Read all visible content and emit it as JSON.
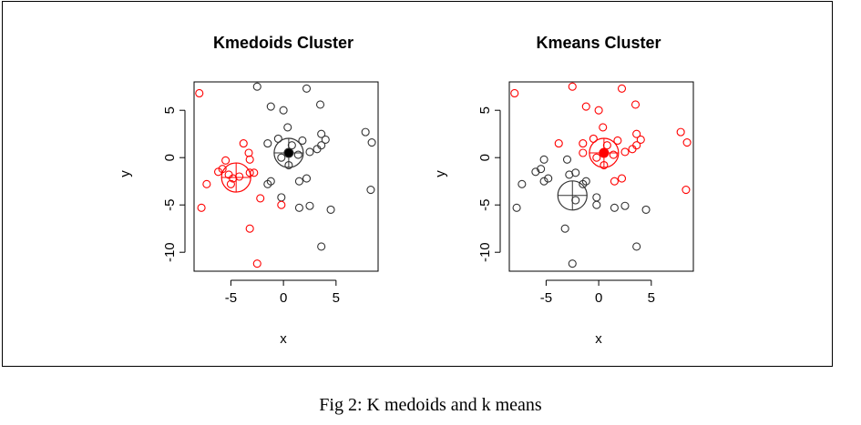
{
  "caption": "Fig 2: K medoids and k means",
  "colors": {
    "cluster_black": "#333333",
    "cluster_red": "#ff0000",
    "axis": "#000000"
  },
  "chart_data": [
    {
      "type": "scatter",
      "title": "Kmedoids Cluster",
      "xlabel": "x",
      "ylabel": "y",
      "xlim": [
        -8.5,
        9
      ],
      "ylim": [
        -12,
        8
      ],
      "xticks": [
        -5,
        0,
        5
      ],
      "yticks": [
        5,
        0,
        -5,
        -10
      ],
      "grid": false,
      "legend": "none",
      "series": [
        {
          "color": "#333333",
          "points": [
            [
              -2.5,
              7.5
            ],
            [
              2.2,
              7.3
            ],
            [
              -1.2,
              5.4
            ],
            [
              0.0,
              5.0
            ],
            [
              3.5,
              5.6
            ],
            [
              0.4,
              3.2
            ],
            [
              -0.5,
              2.0
            ],
            [
              -1.5,
              1.5
            ],
            [
              0.8,
              1.3
            ],
            [
              1.8,
              1.8
            ],
            [
              2.5,
              0.6
            ],
            [
              3.2,
              0.9
            ],
            [
              3.6,
              1.3
            ],
            [
              4.0,
              1.9
            ],
            [
              3.6,
              2.5
            ],
            [
              1.4,
              0.3
            ],
            [
              -0.2,
              0.0
            ],
            [
              0.5,
              -0.8
            ],
            [
              1.5,
              -2.5
            ],
            [
              2.2,
              -2.2
            ],
            [
              -1.2,
              -2.5
            ],
            [
              -1.5,
              -2.8
            ],
            [
              -0.2,
              -4.2
            ],
            [
              1.5,
              -5.3
            ],
            [
              2.5,
              -5.1
            ],
            [
              4.5,
              -5.5
            ],
            [
              3.6,
              -9.4
            ],
            [
              7.8,
              2.7
            ],
            [
              8.4,
              1.6
            ],
            [
              8.3,
              -3.4
            ]
          ],
          "center": [
            0.5,
            0.5
          ]
        },
        {
          "color": "#ff0000",
          "points": [
            [
              -8.0,
              6.8
            ],
            [
              -3.8,
              1.5
            ],
            [
              -3.3,
              0.5
            ],
            [
              -3.2,
              -0.2
            ],
            [
              -5.5,
              -0.3
            ],
            [
              -6.2,
              -1.5
            ],
            [
              -5.8,
              -1.2
            ],
            [
              -5.2,
              -1.8
            ],
            [
              -4.8,
              -2.2
            ],
            [
              -4.2,
              -2.0
            ],
            [
              -3.2,
              -1.6
            ],
            [
              -2.8,
              -1.6
            ],
            [
              -5.0,
              -2.8
            ],
            [
              -7.3,
              -2.8
            ],
            [
              -2.2,
              -4.3
            ],
            [
              -0.2,
              -5.0
            ],
            [
              -7.8,
              -5.3
            ],
            [
              -3.2,
              -7.5
            ],
            [
              -2.5,
              -11.2
            ]
          ],
          "center": [
            -4.5,
            -2.1
          ]
        }
      ]
    },
    {
      "type": "scatter",
      "title": "Kmeans Cluster",
      "xlabel": "x",
      "ylabel": "y",
      "xlim": [
        -8.5,
        9
      ],
      "ylim": [
        -12,
        8
      ],
      "xticks": [
        -5,
        0,
        5
      ],
      "yticks": [
        5,
        0,
        -5,
        -10
      ],
      "grid": false,
      "legend": "none",
      "series": [
        {
          "color": "#333333",
          "points": [
            [
              -5.2,
              -0.2
            ],
            [
              -5.5,
              -1.2
            ],
            [
              -6.0,
              -1.5
            ],
            [
              -4.8,
              -2.2
            ],
            [
              -5.2,
              -2.5
            ],
            [
              -2.8,
              -1.8
            ],
            [
              -2.2,
              -1.6
            ],
            [
              -1.2,
              -2.5
            ],
            [
              -1.5,
              -2.8
            ],
            [
              -0.2,
              -4.2
            ],
            [
              -2.2,
              -4.5
            ],
            [
              1.5,
              -5.3
            ],
            [
              2.5,
              -5.1
            ],
            [
              4.5,
              -5.5
            ],
            [
              -0.2,
              -5.0
            ],
            [
              -7.3,
              -2.8
            ],
            [
              -7.8,
              -5.3
            ],
            [
              -3.2,
              -7.5
            ],
            [
              3.6,
              -9.4
            ],
            [
              -2.5,
              -11.2
            ],
            [
              -3.0,
              -0.2
            ]
          ],
          "center": [
            -2.5,
            -4.0
          ]
        },
        {
          "color": "#ff0000",
          "points": [
            [
              -8.0,
              6.8
            ],
            [
              -2.5,
              7.5
            ],
            [
              2.2,
              7.3
            ],
            [
              -1.2,
              5.4
            ],
            [
              0.0,
              5.0
            ],
            [
              3.5,
              5.6
            ],
            [
              0.4,
              3.2
            ],
            [
              -0.5,
              2.0
            ],
            [
              -1.5,
              1.5
            ],
            [
              0.8,
              1.3
            ],
            [
              1.8,
              1.8
            ],
            [
              2.5,
              0.6
            ],
            [
              3.2,
              0.9
            ],
            [
              3.6,
              1.3
            ],
            [
              4.0,
              1.9
            ],
            [
              3.6,
              2.5
            ],
            [
              1.4,
              0.3
            ],
            [
              -0.2,
              0.0
            ],
            [
              0.5,
              -0.8
            ],
            [
              1.5,
              -2.5
            ],
            [
              2.2,
              -2.2
            ],
            [
              7.8,
              2.7
            ],
            [
              8.4,
              1.6
            ],
            [
              8.3,
              -3.4
            ],
            [
              -3.8,
              1.5
            ],
            [
              -1.5,
              0.5
            ]
          ],
          "center": [
            0.5,
            0.5
          ]
        }
      ]
    }
  ]
}
